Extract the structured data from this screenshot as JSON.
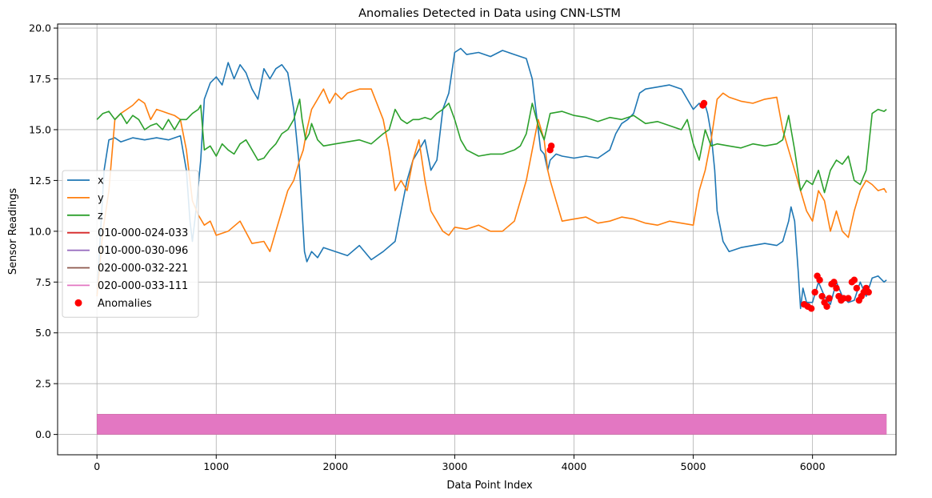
{
  "chart_data": {
    "type": "line",
    "title": "Anomalies Detected in Data using CNN-LSTM",
    "xlabel": "Data Point Index",
    "ylabel": "Sensor Readings",
    "xlim": [
      -330,
      6700
    ],
    "ylim": [
      -1.0,
      20.2
    ],
    "xticks": [
      0,
      1000,
      2000,
      3000,
      4000,
      5000,
      6000
    ],
    "yticks": [
      0.0,
      2.5,
      5.0,
      7.5,
      10.0,
      12.5,
      15.0,
      17.5,
      20.0
    ],
    "ytick_labels": [
      "0.0",
      "2.5",
      "5.0",
      "7.5",
      "10.0",
      "12.5",
      "15.0",
      "17.5",
      "20.0"
    ],
    "grid": true,
    "legend_position": "center-left",
    "series": [
      {
        "name": "x",
        "color": "#1f77b4",
        "x": [
          0,
          30,
          60,
          100,
          150,
          200,
          300,
          400,
          500,
          600,
          700,
          750,
          780,
          800,
          830,
          870,
          900,
          950,
          1000,
          1050,
          1100,
          1150,
          1200,
          1250,
          1300,
          1350,
          1400,
          1450,
          1500,
          1550,
          1600,
          1650,
          1700,
          1720,
          1740,
          1760,
          1800,
          1850,
          1900,
          2000,
          2100,
          2200,
          2300,
          2400,
          2500,
          2550,
          2600,
          2650,
          2700,
          2750,
          2800,
          2850,
          2900,
          2950,
          3000,
          3050,
          3100,
          3200,
          3300,
          3400,
          3500,
          3600,
          3650,
          3700,
          3720,
          3750,
          3780,
          3800,
          3850,
          3900,
          4000,
          4100,
          4200,
          4300,
          4350,
          4400,
          4450,
          4500,
          4550,
          4600,
          4700,
          4800,
          4900,
          4950,
          5000,
          5050,
          5080,
          5100,
          5120,
          5150,
          5180,
          5200,
          5250,
          5300,
          5400,
          5500,
          5600,
          5700,
          5750,
          5800,
          5820,
          5850,
          5880,
          5900,
          5920,
          5950,
          6000,
          6050,
          6100,
          6150,
          6200,
          6250,
          6300,
          6350,
          6400,
          6450,
          6500,
          6550,
          6600,
          6620
        ],
        "y": [
          6.8,
          10.0,
          13.0,
          14.5,
          14.6,
          14.4,
          14.6,
          14.5,
          14.6,
          14.5,
          14.7,
          13.0,
          10.5,
          9.5,
          11.0,
          13.5,
          16.5,
          17.3,
          17.6,
          17.2,
          18.3,
          17.5,
          18.2,
          17.8,
          17.0,
          16.5,
          18.0,
          17.5,
          18.0,
          18.2,
          17.8,
          16.0,
          13.0,
          11.0,
          9.0,
          8.5,
          9.0,
          8.7,
          9.2,
          9.0,
          8.8,
          9.3,
          8.6,
          9.0,
          9.5,
          11.0,
          12.5,
          13.5,
          14.0,
          14.5,
          13.0,
          13.5,
          16.0,
          16.8,
          18.8,
          19.0,
          18.7,
          18.8,
          18.6,
          18.9,
          18.7,
          18.5,
          17.5,
          15.0,
          14.0,
          13.8,
          13.0,
          13.5,
          13.8,
          13.7,
          13.6,
          13.7,
          13.6,
          14.0,
          14.8,
          15.3,
          15.5,
          15.8,
          16.8,
          17.0,
          17.1,
          17.2,
          17.0,
          16.5,
          16.0,
          16.3,
          16.1,
          16.2,
          15.8,
          14.8,
          13.0,
          11.0,
          9.5,
          9.0,
          9.2,
          9.3,
          9.4,
          9.3,
          9.5,
          10.5,
          11.2,
          10.5,
          8.0,
          6.2,
          7.2,
          6.5,
          6.5,
          7.5,
          6.8,
          6.4,
          7.5,
          6.8,
          6.5,
          6.6,
          7.5,
          6.8,
          7.7,
          7.8,
          7.5,
          7.6
        ]
      },
      {
        "name": "y",
        "color": "#ff7f0e",
        "x": [
          0,
          50,
          100,
          150,
          200,
          250,
          300,
          350,
          400,
          450,
          500,
          550,
          600,
          650,
          700,
          750,
          800,
          850,
          900,
          950,
          1000,
          1100,
          1200,
          1300,
          1400,
          1450,
          1500,
          1550,
          1600,
          1650,
          1700,
          1730,
          1760,
          1800,
          1850,
          1900,
          1950,
          2000,
          2050,
          2100,
          2200,
          2300,
          2400,
          2450,
          2500,
          2550,
          2600,
          2650,
          2700,
          2750,
          2800,
          2850,
          2900,
          2950,
          3000,
          3100,
          3200,
          3300,
          3400,
          3500,
          3550,
          3600,
          3650,
          3700,
          3750,
          3780,
          3800,
          3850,
          3900,
          4000,
          4100,
          4200,
          4300,
          4400,
          4500,
          4600,
          4700,
          4800,
          4900,
          5000,
          5050,
          5100,
          5150,
          5200,
          5250,
          5300,
          5400,
          5500,
          5600,
          5700,
          5750,
          5800,
          5850,
          5900,
          5950,
          6000,
          6050,
          6100,
          6150,
          6200,
          6250,
          6300,
          6350,
          6400,
          6450,
          6500,
          6550,
          6600,
          6620
        ],
        "y": [
          6.8,
          10.0,
          12.0,
          15.5,
          15.8,
          16.0,
          16.2,
          16.5,
          16.3,
          15.5,
          16.0,
          15.9,
          15.8,
          15.7,
          15.5,
          14.0,
          11.5,
          10.8,
          10.3,
          10.5,
          9.8,
          10.0,
          10.5,
          9.4,
          9.5,
          9.0,
          10.0,
          11.0,
          12.0,
          12.5,
          13.5,
          14.0,
          15.0,
          16.0,
          16.5,
          17.0,
          16.3,
          16.8,
          16.5,
          16.8,
          17.0,
          17.0,
          15.5,
          14.0,
          12.0,
          12.5,
          12.0,
          13.5,
          14.5,
          12.5,
          11.0,
          10.5,
          10.0,
          9.8,
          10.2,
          10.1,
          10.3,
          10.0,
          10.0,
          10.5,
          11.5,
          12.5,
          14.0,
          15.5,
          14.5,
          13.0,
          12.5,
          11.5,
          10.5,
          10.6,
          10.7,
          10.4,
          10.5,
          10.7,
          10.6,
          10.4,
          10.3,
          10.5,
          10.4,
          10.3,
          12.0,
          13.0,
          14.5,
          16.5,
          16.8,
          16.6,
          16.4,
          16.3,
          16.5,
          16.6,
          15.0,
          14.0,
          13.0,
          12.0,
          11.0,
          10.5,
          12.0,
          11.5,
          10.0,
          11.0,
          10.0,
          9.7,
          11.0,
          12.0,
          12.5,
          12.3,
          12.0,
          12.1,
          11.9
        ]
      },
      {
        "name": "z",
        "color": "#2ca02c",
        "x": [
          0,
          50,
          100,
          150,
          200,
          250,
          300,
          350,
          400,
          450,
          500,
          550,
          600,
          650,
          700,
          750,
          800,
          850,
          870,
          900,
          950,
          1000,
          1050,
          1100,
          1150,
          1200,
          1250,
          1300,
          1350,
          1400,
          1450,
          1500,
          1550,
          1600,
          1650,
          1700,
          1720,
          1750,
          1780,
          1800,
          1850,
          1900,
          2000,
          2100,
          2200,
          2300,
          2400,
          2450,
          2500,
          2550,
          2600,
          2650,
          2700,
          2750,
          2800,
          2850,
          2900,
          2950,
          3000,
          3050,
          3100,
          3200,
          3300,
          3400,
          3500,
          3550,
          3600,
          3650,
          3700,
          3750,
          3800,
          3900,
          4000,
          4100,
          4200,
          4300,
          4400,
          4500,
          4600,
          4700,
          4800,
          4900,
          4950,
          5000,
          5050,
          5100,
          5150,
          5200,
          5300,
          5400,
          5500,
          5600,
          5700,
          5750,
          5800,
          5850,
          5900,
          5950,
          6000,
          6050,
          6100,
          6150,
          6200,
          6250,
          6300,
          6350,
          6400,
          6450,
          6500,
          6550,
          6600,
          6620
        ],
        "y": [
          15.5,
          15.8,
          15.9,
          15.5,
          15.8,
          15.3,
          15.7,
          15.5,
          15.0,
          15.2,
          15.3,
          15.0,
          15.5,
          15.0,
          15.5,
          15.5,
          15.8,
          16.0,
          16.2,
          14.0,
          14.2,
          13.7,
          14.3,
          14.0,
          13.8,
          14.3,
          14.5,
          14.0,
          13.5,
          13.6,
          14.0,
          14.3,
          14.8,
          15.0,
          15.5,
          16.5,
          15.5,
          14.5,
          14.8,
          15.3,
          14.5,
          14.2,
          14.3,
          14.4,
          14.5,
          14.3,
          14.8,
          15.0,
          16.0,
          15.5,
          15.3,
          15.5,
          15.5,
          15.6,
          15.5,
          15.8,
          16.0,
          16.3,
          15.5,
          14.5,
          14.0,
          13.7,
          13.8,
          13.8,
          14.0,
          14.2,
          14.8,
          16.3,
          15.2,
          14.5,
          15.8,
          15.9,
          15.7,
          15.6,
          15.4,
          15.6,
          15.5,
          15.7,
          15.3,
          15.4,
          15.2,
          15.0,
          15.5,
          14.3,
          13.5,
          15.0,
          14.2,
          14.3,
          14.2,
          14.1,
          14.3,
          14.2,
          14.3,
          14.5,
          15.7,
          14.0,
          12.0,
          12.5,
          12.3,
          13.0,
          11.9,
          13.0,
          13.5,
          13.3,
          13.7,
          12.5,
          12.3,
          13.0,
          15.8,
          16.0,
          15.9,
          16.0
        ]
      }
    ],
    "band_series": [
      {
        "name": "010-000-024-033",
        "color": "#d62728",
        "x_start": 0,
        "x_end": 6620,
        "y_low": 0.0,
        "y_high": 1.0
      },
      {
        "name": "010-000-030-096",
        "color": "#9467bd",
        "x_start": 0,
        "x_end": 6620,
        "y_low": 0.0,
        "y_high": 1.0
      },
      {
        "name": "020-000-032-221",
        "color": "#8c564b",
        "x_start": 0,
        "x_end": 6620,
        "y_low": 0.0,
        "y_high": 1.0
      },
      {
        "name": "020-000-033-111",
        "color": "#e377c2",
        "x_start": 0,
        "x_end": 6620,
        "y_low": 0.0,
        "y_high": 1.0
      }
    ],
    "anomalies": {
      "name": "Anomalies",
      "color": "#ff0000",
      "x": [
        3800,
        3810,
        5080,
        5090,
        5930,
        5960,
        5990,
        6020,
        6040,
        6060,
        6080,
        6100,
        6120,
        6140,
        6160,
        6180,
        6200,
        6220,
        6240,
        6260,
        6300,
        6330,
        6350,
        6370,
        6390,
        6410,
        6430,
        6450,
        6470
      ],
      "y": [
        14.0,
        14.2,
        16.2,
        16.3,
        6.4,
        6.3,
        6.2,
        7.0,
        7.8,
        7.6,
        6.8,
        6.5,
        6.3,
        6.7,
        7.4,
        7.5,
        7.2,
        6.8,
        6.6,
        6.7,
        6.7,
        7.5,
        7.6,
        7.2,
        6.6,
        6.8,
        7.0,
        7.2,
        7.0
      ]
    }
  }
}
